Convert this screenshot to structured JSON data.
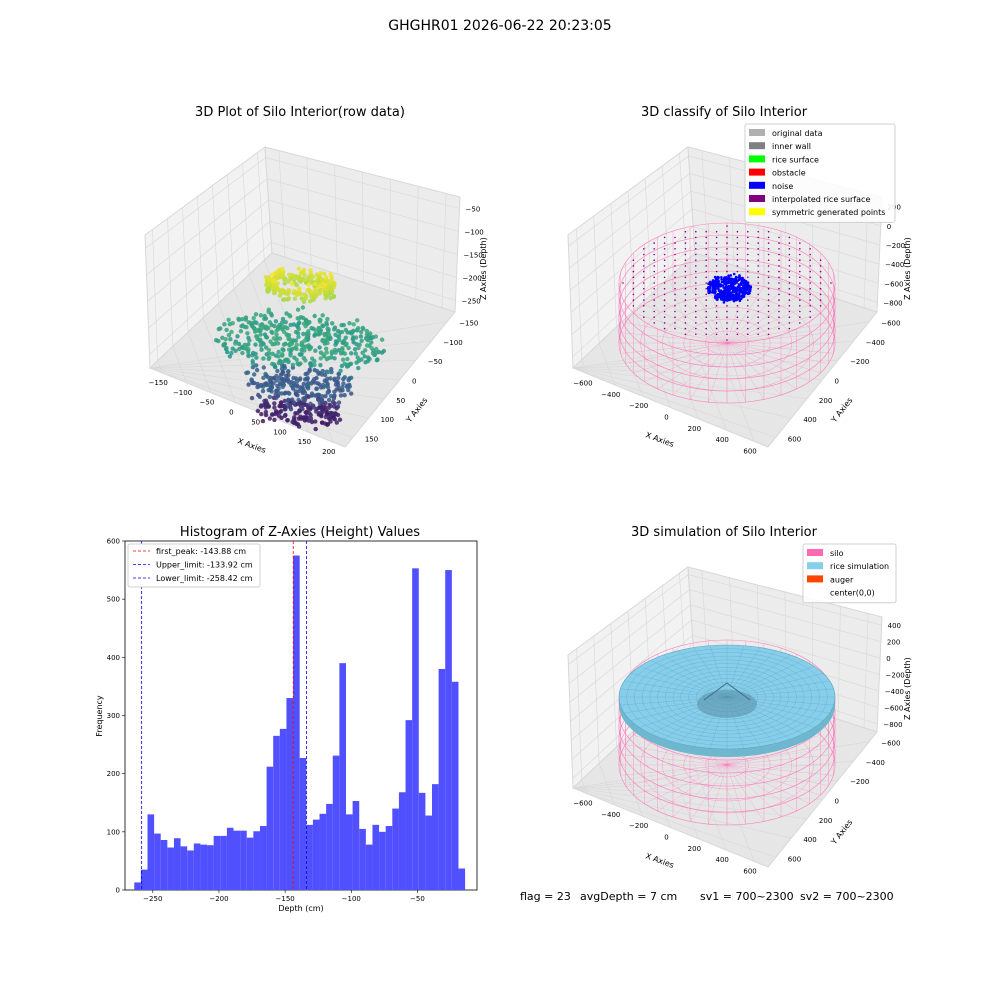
{
  "suptitle": "GHGHR01 2026-06-22 20:23:05",
  "footer": {
    "flag": "flag = 23",
    "avg_depth": "avgDepth = 7 cm",
    "sv1": "sv1 = 700~2300",
    "sv2": "sv2 = 700~2300"
  },
  "colors": {
    "hist_bar": "#5050ff",
    "first_peak": "#ff0000",
    "limits": "#0000ff",
    "silo": "#ff69b4",
    "rice": "#87ceeb",
    "auger": "#ff4500",
    "noise": "#0000ff",
    "pane": "#f2f2f2",
    "grid": "#dddddd"
  },
  "chart_data": [
    {
      "type": "scatter",
      "projection": "3d",
      "title": "3D Plot of Silo Interior(row data)",
      "xlabel": "X Axies",
      "ylabel": "Y Axies",
      "zlabel": "Z Axies (Depth)",
      "xticks": [
        "−150",
        "−100",
        "−50",
        "0",
        "50",
        "100",
        "150",
        "200"
      ],
      "yticks": [
        "150",
        "100",
        "50",
        "0",
        "−50",
        "−100",
        "−150"
      ],
      "zticks": [
        "−50",
        "−100",
        "−150",
        "−200",
        "−250"
      ],
      "xlim": [
        -160,
        210
      ],
      "ylim": [
        -160,
        160
      ],
      "zlim": [
        -270,
        -20
      ],
      "colormap": "viridis",
      "clusters": [
        {
          "z_center": -40,
          "radius": 45,
          "count": 260,
          "shape": "ring"
        },
        {
          "z_center": -130,
          "radius": 110,
          "count": 420,
          "shape": "disk"
        },
        {
          "z_center": -200,
          "radius": 70,
          "count": 220,
          "shape": "disk"
        },
        {
          "z_center": -245,
          "radius": 55,
          "count": 160,
          "shape": "disk"
        }
      ]
    },
    {
      "type": "scatter",
      "projection": "3d",
      "title": "3D classify of Silo Interior",
      "xlabel": "X Axies",
      "ylabel": "Y Axies",
      "zlabel": "Z Axies (Depth)",
      "xticks": [
        "−600",
        "−400",
        "−200",
        "0",
        "200",
        "400",
        "600"
      ],
      "yticks": [
        "600",
        "400",
        "200",
        "0",
        "−200",
        "−400",
        "−600"
      ],
      "zticks": [
        "200",
        "0",
        "−200",
        "−400",
        "−600",
        "−800"
      ],
      "legend_position": "upper-right",
      "legend": [
        {
          "label": "original data",
          "color": "#b0b0b0"
        },
        {
          "label": "inner wall",
          "color": "#808080"
        },
        {
          "label": "rice surface",
          "color": "#00ff00"
        },
        {
          "label": "obstacle",
          "color": "#ff0000"
        },
        {
          "label": "noise",
          "color": "#0000ff"
        },
        {
          "label": "interpolated rice surface",
          "color": "#800080"
        },
        {
          "label": "symmetric generated points",
          "color": "#ffff00"
        }
      ]
    },
    {
      "type": "bar",
      "title": "Histogram of Z-Axies (Height) Values",
      "xlabel": "Depth (cm)",
      "ylabel": "Frequency",
      "xlim": [
        -271,
        -5
      ],
      "ylim": [
        0,
        600
      ],
      "xticks": [
        -250,
        -200,
        -150,
        -100,
        -50
      ],
      "xtick_labels": [
        "−250",
        "−200",
        "−150",
        "−100",
        "−50"
      ],
      "yticks": [
        0,
        100,
        200,
        300,
        400,
        500,
        600
      ],
      "bin_start": -264,
      "bin_width": 5,
      "values": [
        13,
        35,
        130,
        97,
        86,
        73,
        89,
        75,
        68,
        80,
        78,
        77,
        93,
        93,
        107,
        102,
        102,
        90,
        101,
        110,
        212,
        265,
        277,
        330,
        575,
        227,
        112,
        121,
        131,
        148,
        231,
        390,
        130,
        153,
        105,
        78,
        112,
        100,
        110,
        140,
        168,
        292,
        553,
        167,
        128,
        182,
        380,
        550,
        358,
        37
      ],
      "lines": [
        {
          "label": "first_peak: -143.88 cm",
          "x": -143.88,
          "color": "#ff0000"
        },
        {
          "label": "Upper_limit: -133.92 cm",
          "x": -133.92,
          "color": "#0000ff"
        },
        {
          "label": "Lower_limit: -258.42 cm",
          "x": -258.42,
          "color": "#0000ff"
        }
      ],
      "legend_position": "upper-left"
    },
    {
      "type": "surface",
      "projection": "3d",
      "title": "3D simulation of Silo Interior",
      "xlabel": "X Axies",
      "ylabel": "Y Axies",
      "zlabel": "Z Axies (Depth)",
      "xticks": [
        "−600",
        "−400",
        "−200",
        "0",
        "200",
        "400",
        "600"
      ],
      "yticks": [
        "600",
        "400",
        "200",
        "0",
        "−200",
        "−400",
        "−600"
      ],
      "zticks": [
        "400",
        "200",
        "0",
        "−200",
        "−400",
        "−600",
        "−800"
      ],
      "legend_position": "upper-right",
      "legend": [
        {
          "label": "silo",
          "color": "#ff69b4"
        },
        {
          "label": "rice simulation",
          "color": "#87ceeb"
        },
        {
          "label": "auger",
          "color": "#ff4500"
        },
        {
          "label": "center(0,0)",
          "color": "#ffffff"
        }
      ]
    }
  ]
}
